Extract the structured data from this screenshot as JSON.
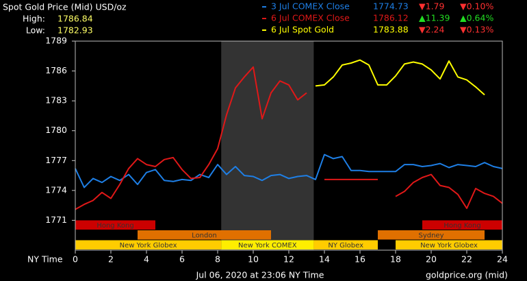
{
  "chart_data": {
    "type": "line",
    "title": "Spot Gold Price (Mid) USD/oz",
    "high_label": "High:",
    "high": 1786.84,
    "low_label": "Low:",
    "low": 1782.93,
    "x_label": "NY Time",
    "footer": "Jul 06, 2020 at 23:06 NY Time",
    "source": "goldprice.org (mid)",
    "xlim": [
      0,
      24
    ],
    "xticks": [
      0,
      2,
      4,
      6,
      8,
      10,
      12,
      14,
      16,
      18,
      20,
      22,
      24
    ],
    "ylim": [
      1768,
      1789
    ],
    "yticks": [
      1771,
      1774,
      1777,
      1780,
      1783,
      1786,
      1789
    ],
    "grid": false,
    "highlight": [
      8.2,
      13.4
    ],
    "highlight_color": "#333333",
    "x": [
      0,
      0.5,
      1,
      1.5,
      2,
      2.5,
      3,
      3.5,
      4,
      4.5,
      5,
      5.5,
      6,
      6.5,
      7,
      7.5,
      8,
      8.5,
      9,
      9.5,
      10,
      10.5,
      11,
      11.5,
      12,
      12.5,
      13,
      13.5,
      14,
      14.5,
      15,
      15.5,
      16,
      16.5,
      17,
      17.5,
      18,
      18.5,
      19,
      19.5,
      20,
      20.5,
      21,
      21.5,
      22,
      22.5,
      23,
      23.5,
      24
    ],
    "series": [
      {
        "name": "3 Jul COMEX Close",
        "color": "#1e7fe6",
        "close": 1774.73,
        "change_label": "▼1.79",
        "pct_label": "▼0.10%",
        "values": [
          1776.2,
          1774.3,
          1775.2,
          1774.8,
          1775.4,
          1775.0,
          1775.6,
          1774.6,
          1775.8,
          1776.1,
          1775.0,
          1774.9,
          1775.1,
          1775.0,
          1775.6,
          1775.3,
          1776.6,
          1775.6,
          1776.4,
          1775.5,
          1775.4,
          1775.0,
          1775.5,
          1775.6,
          1775.2,
          1775.4,
          1775.5,
          1775.1,
          1777.6,
          1777.2,
          1777.4,
          1776.0,
          1776.0,
          1775.9,
          1775.9,
          1775.9,
          1775.9,
          1776.6,
          1776.6,
          1776.4,
          1776.5,
          1776.7,
          1776.3,
          1776.6,
          1776.5,
          1776.4,
          1776.8,
          1776.4,
          1776.2
        ]
      },
      {
        "name": "6 Jul COMEX Close",
        "color": "#e01818",
        "close": 1786.12,
        "change_label": "▲11.39",
        "pct_label": "▲0.64%",
        "values": [
          1772.1,
          1772.6,
          1773.0,
          1773.8,
          1773.2,
          1774.6,
          1776.2,
          1777.2,
          1776.6,
          1776.4,
          1777.1,
          1777.3,
          1776.1,
          1775.2,
          1775.3,
          1776.6,
          1778.2,
          1781.6,
          1784.3,
          1785.4,
          1786.4,
          1781.2,
          1783.8,
          1785.0,
          1784.6,
          1783.1,
          1783.8,
          null,
          1775.1,
          1775.1,
          1775.1,
          1775.1,
          1775.1,
          1775.1,
          1775.1,
          null,
          1773.4,
          1773.9,
          1774.8,
          1775.3,
          1775.6,
          1774.5,
          1774.3,
          1773.6,
          1772.2,
          1774.2,
          1773.7,
          1773.4,
          1772.7
        ]
      },
      {
        "name": "6 Jul Spot Gold",
        "color": "#ffff00",
        "close": 1783.88,
        "change_label": "▼2.24",
        "pct_label": "▼0.13%",
        "values": [
          null,
          null,
          null,
          null,
          null,
          null,
          null,
          null,
          null,
          null,
          null,
          null,
          null,
          null,
          null,
          null,
          null,
          null,
          null,
          null,
          null,
          null,
          null,
          null,
          null,
          null,
          null,
          1784.5,
          1784.6,
          1785.4,
          1786.6,
          1786.8,
          1787.1,
          1786.6,
          1784.6,
          1784.6,
          1785.5,
          1786.7,
          1786.9,
          1786.7,
          1786.1,
          1785.2,
          1787.0,
          1785.4,
          1785.1,
          1784.4,
          1783.6,
          null,
          null
        ]
      }
    ],
    "sessions": [
      [
        {
          "name": "Hong Kong",
          "start": 0,
          "end": 4.5,
          "color": "#cc0000"
        },
        {
          "name": "Hong Kong",
          "start": 19.5,
          "end": 24,
          "color": "#cc0000"
        }
      ],
      [
        {
          "name": "London",
          "start": 3.5,
          "end": 11,
          "color": "#e07000"
        },
        {
          "name": "Sydney",
          "start": 17,
          "end": 23,
          "color": "#e07000"
        }
      ],
      [
        {
          "name": "New York Globex",
          "start": 0,
          "end": 8.2,
          "color": "#ffcc00"
        },
        {
          "name": "New York COMEX",
          "start": 8.2,
          "end": 13.4,
          "color": "#ffee00"
        },
        {
          "name": "NY Globex",
          "start": 13.4,
          "end": 17,
          "color": "#ffcc00"
        },
        {
          "name": "New York Globex",
          "start": 18,
          "end": 24,
          "color": "#ffcc00"
        }
      ]
    ]
  }
}
